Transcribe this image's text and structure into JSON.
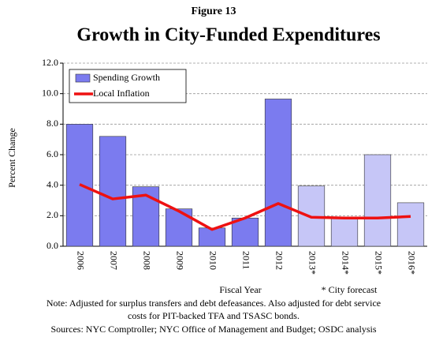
{
  "chart_data": {
    "type": "bar_line",
    "figure_label": "Figure 13",
    "title": "Growth in City-Funded Expenditures",
    "x_label": "Fiscal Year",
    "y_label": "Percent Change",
    "forecast_note": "* City forecast",
    "note": [
      "Note: Adjusted for surplus transfers and debt defeasances. Also adjusted for debt service",
      "costs for PIT-backed TFA and TSASC bonds."
    ],
    "sources": "Sources: NYC Comptroller; NYC Office of Management and Budget; OSDC analysis",
    "categories": [
      "2006",
      "2007",
      "2008",
      "2009",
      "2010",
      "2011",
      "2012",
      "2013*",
      "2014*",
      "2015*",
      "2016*"
    ],
    "series": [
      {
        "name": "Spending Growth",
        "kind": "bar",
        "color": "#7b7bef",
        "colors": [
          "#7b7bef",
          "#7b7bef",
          "#7b7bef",
          "#7b7bef",
          "#7b7bef",
          "#7b7bef",
          "#7b7bef",
          "#c6c6f7",
          "#c6c6f7",
          "#c6c6f7",
          "#c6c6f7"
        ],
        "values": [
          8.0,
          7.2,
          3.9,
          2.45,
          1.2,
          1.85,
          9.65,
          3.95,
          1.9,
          6.0,
          2.85
        ]
      },
      {
        "name": "Local Inflation",
        "kind": "line",
        "color": "#ee1111",
        "values": [
          4.05,
          3.1,
          3.35,
          2.3,
          1.1,
          1.85,
          2.8,
          1.9,
          1.85,
          1.85,
          1.95
        ]
      }
    ],
    "ylim": [
      0,
      12
    ],
    "yticks": [
      {
        "value": 0,
        "label": "0.0"
      },
      {
        "value": 2,
        "label": "2.0"
      },
      {
        "value": 4,
        "label": "4.0"
      },
      {
        "value": 6,
        "label": "6.0"
      },
      {
        "value": 8,
        "label": "8.0"
      },
      {
        "value": 10,
        "label": "10.0"
      },
      {
        "value": 12,
        "label": "12.0"
      }
    ],
    "grid": true
  }
}
